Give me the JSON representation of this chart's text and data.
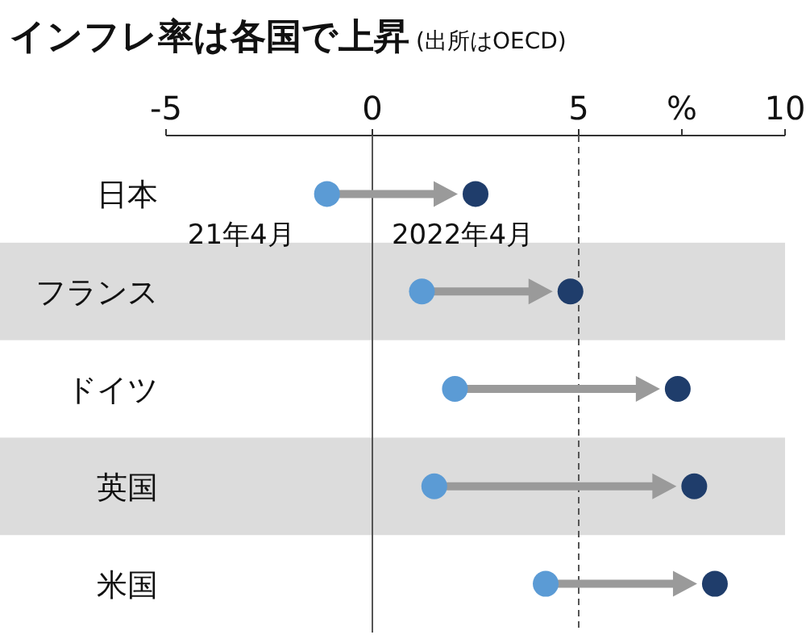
{
  "chart_data": {
    "type": "scatter",
    "orientation": "horizontal",
    "title": "インフレ率は各国で上昇",
    "subtitle": "(出所はOECD)",
    "categories": [
      "日本",
      "フランス",
      "ドイツ",
      "英国",
      "米国"
    ],
    "series": [
      {
        "name": "21年4月",
        "color": "#5b9bd5",
        "values": [
          -1.1,
          1.2,
          2.0,
          1.5,
          4.2
        ]
      },
      {
        "name": "2022年4月",
        "color": "#1f3d6b",
        "values": [
          2.5,
          4.8,
          7.4,
          7.8,
          8.3
        ]
      }
    ],
    "xlim": [
      -5,
      10
    ],
    "xticks": [
      -5,
      0,
      5,
      {
        "value": 7.5,
        "label": "%"
      },
      10
    ],
    "ref_lines": [
      {
        "axis": "x",
        "value": 0,
        "line_style": "solid"
      },
      {
        "axis": "x",
        "value": 5,
        "line_style": "dashed"
      }
    ],
    "marker": "circle"
  }
}
